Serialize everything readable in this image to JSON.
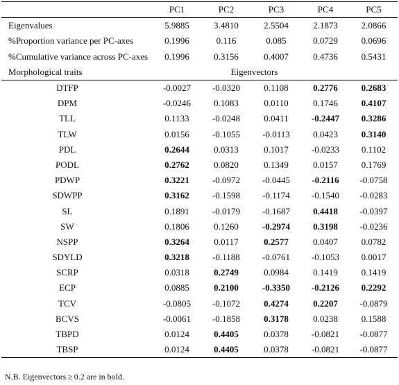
{
  "headers": [
    "",
    "PC1",
    "PC2",
    "PC3",
    "PC4",
    "PC5"
  ],
  "summary_rows": [
    {
      "label": "Eigenvalues",
      "values": [
        "5.9885",
        "3.4810",
        "2.5504",
        "2.1873",
        "2.0866"
      ]
    },
    {
      "label": "%Proportion variance per PC-axes",
      "values": [
        "0.1996",
        "0.116",
        "0.085",
        "0.0729",
        "0.0696"
      ]
    },
    {
      "label": "%Cumulative variance across PC-axes",
      "values": [
        "0.1996",
        "0.3156",
        "0.4007",
        "0.4736",
        "0.5431"
      ]
    }
  ],
  "section_label": "Morphological traits",
  "section_values_label": "Eigenvectors",
  "traits": [
    {
      "name": "DTFP",
      "values": [
        "-0.0027",
        "-0.0320",
        "0.1108",
        "0.2776",
        "0.2683"
      ],
      "bold": [
        false,
        false,
        false,
        true,
        true
      ]
    },
    {
      "name": "DPM",
      "values": [
        "-0.0246",
        "0.1083",
        "0.0110",
        "0.1746",
        "0.4107"
      ],
      "bold": [
        false,
        false,
        false,
        false,
        true
      ]
    },
    {
      "name": "TLL",
      "values": [
        "0.1133",
        "-0.0248",
        "0.0411",
        "-0.2447",
        "0.3286"
      ],
      "bold": [
        false,
        false,
        false,
        true,
        true
      ]
    },
    {
      "name": "TLW",
      "values": [
        "0.0156",
        "-0.1055",
        "-0.0113",
        "0.0423",
        "0.3140"
      ],
      "bold": [
        false,
        false,
        false,
        false,
        true
      ]
    },
    {
      "name": "PDL",
      "values": [
        "0.2644",
        "0.0313",
        "0.1017",
        "-0.0233",
        "0.1102"
      ],
      "bold": [
        true,
        false,
        false,
        false,
        false
      ]
    },
    {
      "name": "PODL",
      "values": [
        "0.2762",
        "0.0820",
        "0.1349",
        "0.0157",
        "0.1769"
      ],
      "bold": [
        true,
        false,
        false,
        false,
        false
      ]
    },
    {
      "name": "PDWP",
      "values": [
        "0.3221",
        "-0.0972",
        "-0.0445",
        "-0.2116",
        "-0.0758"
      ],
      "bold": [
        true,
        false,
        false,
        true,
        false
      ]
    },
    {
      "name": "SDWPP",
      "values": [
        "0.3162",
        "-0.1598",
        "-0.1174",
        "-0.1540",
        "-0.0283"
      ],
      "bold": [
        true,
        false,
        false,
        false,
        false
      ]
    },
    {
      "name": "SL",
      "values": [
        "0.1891",
        "-0.0179",
        "-0.1687",
        "0.4418",
        "-0.0397"
      ],
      "bold": [
        false,
        false,
        false,
        true,
        false
      ]
    },
    {
      "name": "SW",
      "values": [
        "0.1806",
        "0.1260",
        "-0.2974",
        "0.3198",
        "-0.0236"
      ],
      "bold": [
        false,
        false,
        true,
        true,
        false
      ]
    },
    {
      "name": "NSPP",
      "values": [
        "0.3264",
        "0.0117",
        "0.2577",
        "0.0407",
        "0.0782"
      ],
      "bold": [
        true,
        false,
        true,
        false,
        false
      ]
    },
    {
      "name": "SDYLD",
      "values": [
        "0.3218",
        "-0.1188",
        "-0.0761",
        "-0.1053",
        "0.0017"
      ],
      "bold": [
        true,
        false,
        false,
        false,
        false
      ]
    },
    {
      "name": "SCRP",
      "values": [
        "0.0318",
        "0.2749",
        "0.0984",
        "0.1419",
        "0.1419"
      ],
      "bold": [
        false,
        true,
        false,
        false,
        false
      ]
    },
    {
      "name": "ECP",
      "values": [
        "0.0885",
        "0.2100",
        "-0.3350",
        "-0.2126",
        "0.2292"
      ],
      "bold": [
        false,
        true,
        true,
        true,
        true
      ]
    },
    {
      "name": "TCV",
      "values": [
        "-0.0805",
        "-0.1072",
        "0.4274",
        "0.2207",
        "-0.0879"
      ],
      "bold": [
        false,
        false,
        true,
        true,
        false
      ]
    },
    {
      "name": "BCVS",
      "values": [
        "-0.0061",
        "-0.1858",
        "0.3178",
        "0.0238",
        "0.1588"
      ],
      "bold": [
        false,
        false,
        true,
        false,
        false
      ]
    },
    {
      "name": "TBPD",
      "values": [
        "0.0124",
        "0.4405",
        "0.0378",
        "-0.0821",
        "-0.0877"
      ],
      "bold": [
        false,
        true,
        false,
        false,
        false
      ]
    },
    {
      "name": "TBSP",
      "values": [
        "0.0124",
        "0.4405",
        "0.0378",
        "-0.0821",
        "-0.0877"
      ],
      "bold": [
        false,
        true,
        false,
        false,
        false
      ]
    }
  ],
  "note": "N.B. Eigenvectors ≥ 0.2 are in bold."
}
